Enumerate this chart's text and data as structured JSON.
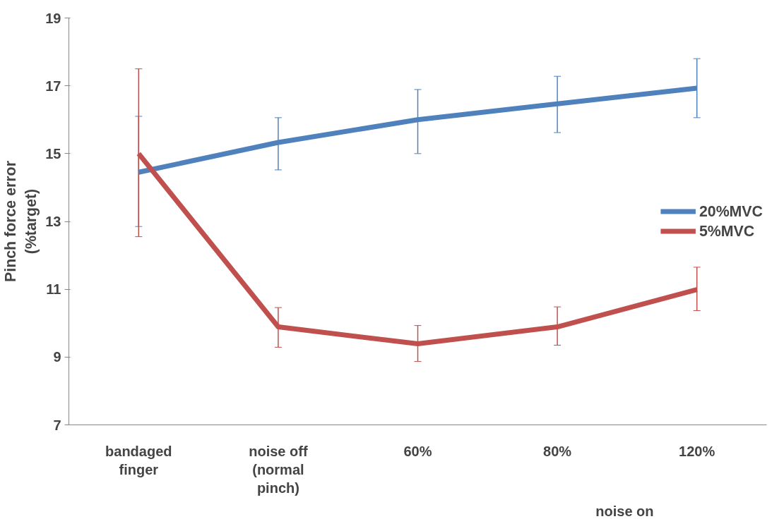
{
  "chart_data": {
    "type": "line",
    "ylabel": "Pinch force error (%target)",
    "categories": [
      "bandaged finger",
      "noise off (normal pinch)",
      "60%",
      "80%",
      "120%"
    ],
    "series": [
      {
        "name": "20%MVC",
        "color": "#4f81bd",
        "values": [
          14.45,
          15.33,
          16.0,
          16.47,
          16.93
        ],
        "errors": [
          [
            12.85,
            16.1
          ],
          [
            14.52,
            16.06
          ],
          [
            15.0,
            16.89
          ],
          [
            15.62,
            17.28
          ],
          [
            16.06,
            17.8
          ]
        ]
      },
      {
        "name": "5%MVC",
        "color": "#c0504d",
        "values": [
          15.0,
          9.89,
          9.39,
          9.89,
          10.99
        ],
        "errors": [
          [
            12.55,
            17.5
          ],
          [
            9.29,
            10.46
          ],
          [
            8.87,
            9.93
          ],
          [
            9.35,
            10.48
          ],
          [
            10.37,
            11.65
          ]
        ]
      }
    ],
    "annotations": [
      "noise on"
    ],
    "ylim": [
      7,
      19
    ],
    "yticks": [
      7,
      9,
      11,
      13,
      15,
      17,
      19
    ],
    "grid": false,
    "legend": "right",
    "marker": "none",
    "line_style": "solid"
  }
}
